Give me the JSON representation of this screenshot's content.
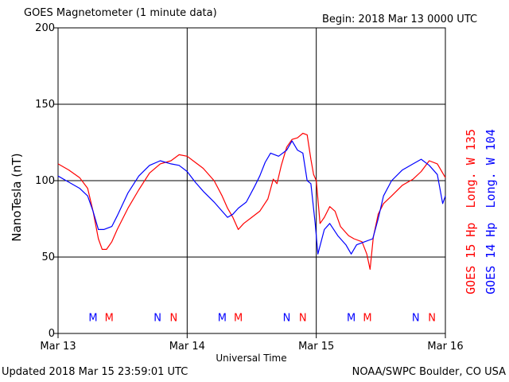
{
  "header": {
    "title": "GOES Magnetometer (1 minute data)",
    "begin": "Begin:  2018 Mar 13 0000 UTC"
  },
  "footer": {
    "updated": "Updated 2018 Mar 15 23:59:01 UTC",
    "credit": "NOAA/SWPC Boulder, CO USA"
  },
  "colors": {
    "goes15": "#ff0000",
    "goes14": "#0000ff",
    "grid": "#000000"
  },
  "chart_data": {
    "type": "line",
    "title": "GOES Magnetometer (1 minute data)",
    "xlabel": "Universal Time",
    "ylabel": "NanoTesla (nT)",
    "xlim": [
      0,
      72
    ],
    "ylim": [
      0,
      200
    ],
    "yticks": [
      0,
      50,
      100,
      150,
      200
    ],
    "xticks": [
      {
        "t": 0,
        "label": "Mar 13"
      },
      {
        "t": 24,
        "label": "Mar 14"
      },
      {
        "t": 48,
        "label": "Mar 15"
      },
      {
        "t": 72,
        "label": "Mar 16"
      }
    ],
    "grid": true,
    "legend_position": "right (vertical)",
    "series": [
      {
        "name": "GOES 15 Hp  Long. W 135",
        "color": "#ff0000",
        "points": [
          [
            0,
            111
          ],
          [
            2,
            107
          ],
          [
            4,
            102
          ],
          [
            5.5,
            95
          ],
          [
            6.5,
            80
          ],
          [
            7.5,
            62
          ],
          [
            8.2,
            55
          ],
          [
            9,
            55
          ],
          [
            10,
            60
          ],
          [
            11,
            68
          ],
          [
            13,
            82
          ],
          [
            15,
            94
          ],
          [
            17,
            105
          ],
          [
            19,
            111
          ],
          [
            21,
            113
          ],
          [
            22.5,
            117
          ],
          [
            24,
            116
          ],
          [
            25.5,
            112
          ],
          [
            27,
            108
          ],
          [
            29,
            100
          ],
          [
            30.5,
            90
          ],
          [
            31.5,
            82
          ],
          [
            32.5,
            76
          ],
          [
            33.5,
            68
          ],
          [
            34.5,
            72
          ],
          [
            36,
            76
          ],
          [
            37.5,
            80
          ],
          [
            39,
            88
          ],
          [
            40,
            101
          ],
          [
            40.7,
            98
          ],
          [
            41.5,
            110
          ],
          [
            42.5,
            122
          ],
          [
            43.5,
            127
          ],
          [
            44.5,
            128
          ],
          [
            45.5,
            131
          ],
          [
            46.3,
            130
          ],
          [
            47,
            114
          ],
          [
            47.5,
            104
          ],
          [
            48,
            100
          ],
          [
            48.7,
            72
          ],
          [
            49.5,
            76
          ],
          [
            50.5,
            83
          ],
          [
            51.5,
            80
          ],
          [
            52.5,
            70
          ],
          [
            54,
            64
          ],
          [
            55,
            62
          ],
          [
            56.5,
            60
          ],
          [
            57.4,
            52
          ],
          [
            58,
            42
          ],
          [
            58.6,
            63
          ],
          [
            59.5,
            78
          ],
          [
            60.5,
            85
          ],
          [
            62,
            90
          ],
          [
            64,
            97
          ],
          [
            66,
            101
          ],
          [
            67.5,
            106
          ],
          [
            69,
            113
          ],
          [
            70.5,
            111
          ],
          [
            72,
            102
          ]
        ]
      },
      {
        "name": "GOES 14 Hp  Long. W 104",
        "color": "#0000ff",
        "points": [
          [
            0,
            103
          ],
          [
            2,
            99
          ],
          [
            4,
            95
          ],
          [
            5.5,
            90
          ],
          [
            6.5,
            80
          ],
          [
            7.5,
            68
          ],
          [
            8.5,
            68
          ],
          [
            10,
            70
          ],
          [
            11,
            77
          ],
          [
            13,
            92
          ],
          [
            15,
            103
          ],
          [
            17,
            110
          ],
          [
            19,
            113
          ],
          [
            21,
            111
          ],
          [
            22.5,
            110
          ],
          [
            24,
            106
          ],
          [
            25.5,
            99
          ],
          [
            27,
            93
          ],
          [
            29,
            86
          ],
          [
            30.5,
            80
          ],
          [
            31.5,
            76
          ],
          [
            32.5,
            78
          ],
          [
            33.5,
            82
          ],
          [
            35,
            86
          ],
          [
            36.5,
            96
          ],
          [
            37.5,
            103
          ],
          [
            38.5,
            112
          ],
          [
            39.5,
            118
          ],
          [
            41,
            116
          ],
          [
            42.5,
            120
          ],
          [
            43.5,
            126
          ],
          [
            44.5,
            120
          ],
          [
            45.5,
            118
          ],
          [
            46.3,
            100
          ],
          [
            47,
            98
          ],
          [
            47.8,
            72
          ],
          [
            48.3,
            52
          ],
          [
            49.5,
            68
          ],
          [
            50.5,
            72
          ],
          [
            52,
            64
          ],
          [
            53.5,
            58
          ],
          [
            54.5,
            52
          ],
          [
            55.5,
            58
          ],
          [
            57,
            60
          ],
          [
            58.5,
            62
          ],
          [
            59.5,
            75
          ],
          [
            60.5,
            90
          ],
          [
            62,
            100
          ],
          [
            64,
            107
          ],
          [
            66,
            111
          ],
          [
            67.5,
            114
          ],
          [
            69,
            110
          ],
          [
            70.5,
            104
          ],
          [
            71.5,
            85
          ],
          [
            72,
            90
          ]
        ]
      }
    ],
    "annotations": [
      {
        "text": "M",
        "t": 6.5,
        "series": "GOES 14 Hp  Long. W 104",
        "color": "#0000ff"
      },
      {
        "text": "M",
        "t": 9.5,
        "series": "GOES 15 Hp  Long. W 135",
        "color": "#ff0000"
      },
      {
        "text": "N",
        "t": 18.5,
        "series": "GOES 14 Hp  Long. W 104",
        "color": "#0000ff"
      },
      {
        "text": "N",
        "t": 21.5,
        "series": "GOES 15 Hp  Long. W 135",
        "color": "#ff0000"
      },
      {
        "text": "M",
        "t": 30.5,
        "series": "GOES 14 Hp  Long. W 104",
        "color": "#0000ff"
      },
      {
        "text": "M",
        "t": 33.5,
        "series": "GOES 15 Hp  Long. W 135",
        "color": "#ff0000"
      },
      {
        "text": "N",
        "t": 42.5,
        "series": "GOES 14 Hp  Long. W 104",
        "color": "#0000ff"
      },
      {
        "text": "N",
        "t": 45.5,
        "series": "GOES 15 Hp  Long. W 135",
        "color": "#ff0000"
      },
      {
        "text": "M",
        "t": 54.5,
        "series": "GOES 14 Hp  Long. W 104",
        "color": "#0000ff"
      },
      {
        "text": "M",
        "t": 57.5,
        "series": "GOES 15 Hp  Long. W 135",
        "color": "#ff0000"
      },
      {
        "text": "N",
        "t": 66.5,
        "series": "GOES 14 Hp  Long. W 104",
        "color": "#0000ff"
      },
      {
        "text": "N",
        "t": 69.5,
        "series": "GOES 15 Hp  Long. W 135",
        "color": "#ff0000"
      }
    ]
  }
}
